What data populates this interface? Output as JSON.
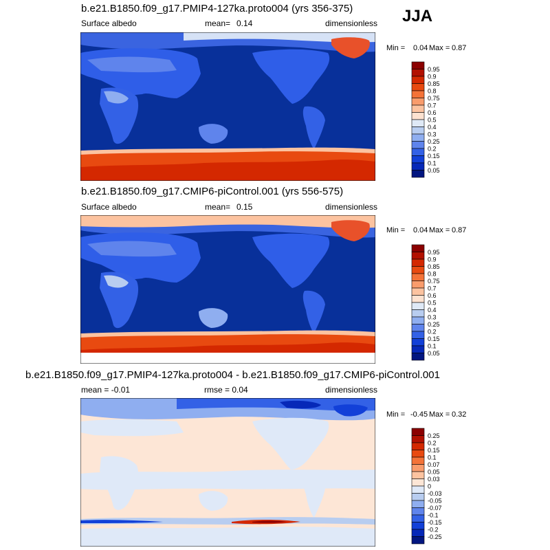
{
  "season": "JJA",
  "panels": [
    {
      "title": "b.e21.B1850.f09_g17.PMIP4-127ka.proto004 (yrs 356-375)",
      "left_label": "Surface albedo",
      "mean_label": "mean=",
      "mean_value": "0.14",
      "right_label": "dimensionless",
      "min_label": "Min =",
      "min_value": "0.04",
      "max_label": "Max =",
      "max_value": "0.87"
    },
    {
      "title": "b.e21.B1850.f09_g17.CMIP6-piControl.001 (yrs 556-575)",
      "left_label": "Surface albedo",
      "mean_label": "mean=",
      "mean_value": "0.15",
      "right_label": "dimensionless",
      "min_label": "Min =",
      "min_value": "0.04",
      "max_label": "Max =",
      "max_value": "0.87"
    },
    {
      "title": "b.e21.B1850.f09_g17.PMIP4-127ka.proto004 - b.e21.B1850.f09_g17.CMIP6-piControl.001",
      "left_label": "mean =  -0.01",
      "center_label": "rmse =   0.04",
      "right_label": "dimensionless",
      "min_label": "Min =",
      "min_value": "-0.45",
      "max_label": "Max =",
      "max_value": "0.32"
    }
  ],
  "chart_data": [
    {
      "type": "heatmap",
      "variable": "Surface albedo",
      "units": "dimensionless",
      "mean": 0.14,
      "min": 0.04,
      "max": 0.87,
      "colorbar": {
        "levels": [
          "0.95",
          "0.9",
          "0.85",
          "0.8",
          "0.75",
          "0.7",
          "0.6",
          "0.5",
          "0.4",
          "0.3",
          "0.25",
          "0.2",
          "0.15",
          "0.1",
          "0.05"
        ],
        "colors": [
          "#8b0000",
          "#b21000",
          "#d42800",
          "#e84a10",
          "#f47338",
          "#f99c6c",
          "#fcc3a0",
          "#fde2d0",
          "#dfe9f6",
          "#b8cdf0",
          "#8faef0",
          "#5f84ec",
          "#3361e6",
          "#1240d8",
          "#0628b8",
          "#021680"
        ]
      }
    },
    {
      "type": "heatmap",
      "variable": "Surface albedo",
      "units": "dimensionless",
      "mean": 0.15,
      "min": 0.04,
      "max": 0.87,
      "colorbar": {
        "levels": [
          "0.95",
          "0.9",
          "0.85",
          "0.8",
          "0.75",
          "0.7",
          "0.6",
          "0.5",
          "0.4",
          "0.3",
          "0.25",
          "0.2",
          "0.15",
          "0.1",
          "0.05"
        ],
        "colors": [
          "#8b0000",
          "#b21000",
          "#d42800",
          "#e84a10",
          "#f47338",
          "#f99c6c",
          "#fcc3a0",
          "#fde2d0",
          "#dfe9f6",
          "#b8cdf0",
          "#8faef0",
          "#5f84ec",
          "#3361e6",
          "#1240d8",
          "#0628b8",
          "#021680"
        ]
      }
    },
    {
      "type": "heatmap",
      "variable": "difference",
      "units": "dimensionless",
      "mean": -0.01,
      "rmse": 0.04,
      "min": -0.45,
      "max": 0.32,
      "colorbar": {
        "levels": [
          "0.25",
          "0.2",
          "0.15",
          "0.1",
          "0.07",
          "0.05",
          "0.03",
          "0",
          "-0.03",
          "-0.05",
          "-0.07",
          "-0.1",
          "-0.15",
          "-0.2",
          "-0.25"
        ],
        "colors": [
          "#8b0000",
          "#b21000",
          "#d42800",
          "#e84a10",
          "#f47338",
          "#f99c6c",
          "#fcc3a0",
          "#fde6d6",
          "#dfe9f8",
          "#b8cdf0",
          "#8faef0",
          "#5f84ec",
          "#3361e6",
          "#1240d8",
          "#0628b8",
          "#021680"
        ]
      }
    }
  ]
}
